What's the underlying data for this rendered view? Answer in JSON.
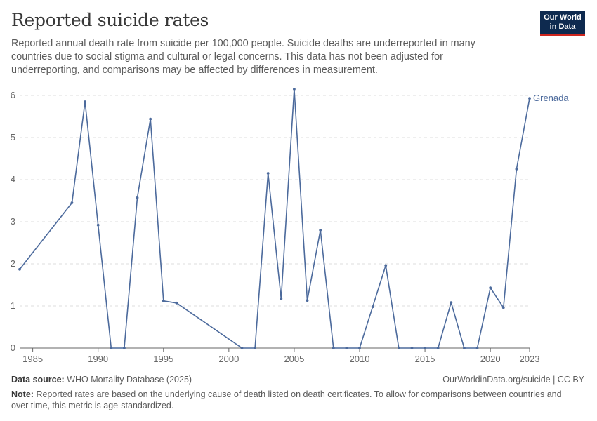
{
  "title": "Reported suicide rates",
  "subtitle": "Reported annual death rate from suicide per 100,000 people. Suicide deaths are underreported in many countries due to social stigma and cultural or legal concerns. This data has not been adjusted for underreporting, and comparisons may be affected by differences in measurement.",
  "logo": {
    "line1": "Our World",
    "line2": "in Data"
  },
  "footer": {
    "source_label": "Data source:",
    "source_text": "WHO Mortality Database (2025)",
    "url": "OurWorldinData.org/suicide | CC BY",
    "note_label": "Note:",
    "note_text": "Reported rates are based on the underlying cause of death listed on death certificates. To allow for comparisons between countries and over time, this metric is age-standardized."
  },
  "colors": {
    "series": "#4c6a9c",
    "grid": "#dddddd",
    "axis": "#666666",
    "text": "#666666"
  },
  "chart_data": {
    "type": "line",
    "title": "Reported suicide rates",
    "xlim": [
      1984,
      2023
    ],
    "ylim": [
      0,
      6
    ],
    "x_ticks": [
      "1985",
      "1990",
      "1995",
      "2000",
      "2005",
      "2010",
      "2015",
      "2020",
      "2023"
    ],
    "y_ticks": [
      "0",
      "1",
      "2",
      "3",
      "4",
      "5",
      "6"
    ],
    "grid": "horizontal dashed",
    "legend": "end-of-line label",
    "series": [
      {
        "name": "Grenada",
        "x": [
          1984,
          1988,
          1989,
          1990,
          1991,
          1992,
          1993,
          1994,
          1995,
          1996,
          2001,
          2002,
          2003,
          2004,
          2005,
          2006,
          2007,
          2008,
          2009,
          2010,
          2011,
          2012,
          2013,
          2014,
          2015,
          2016,
          2017,
          2018,
          2019,
          2020,
          2021,
          2022,
          2023
        ],
        "y": [
          1.87,
          3.45,
          5.85,
          2.92,
          0,
          0,
          3.57,
          5.44,
          1.12,
          1.07,
          0,
          0,
          4.15,
          1.17,
          6.15,
          1.13,
          2.8,
          0,
          0,
          0,
          0.98,
          1.96,
          0,
          0,
          0,
          0,
          1.08,
          0,
          0,
          1.43,
          0.96,
          4.25,
          5.93
        ]
      }
    ]
  }
}
